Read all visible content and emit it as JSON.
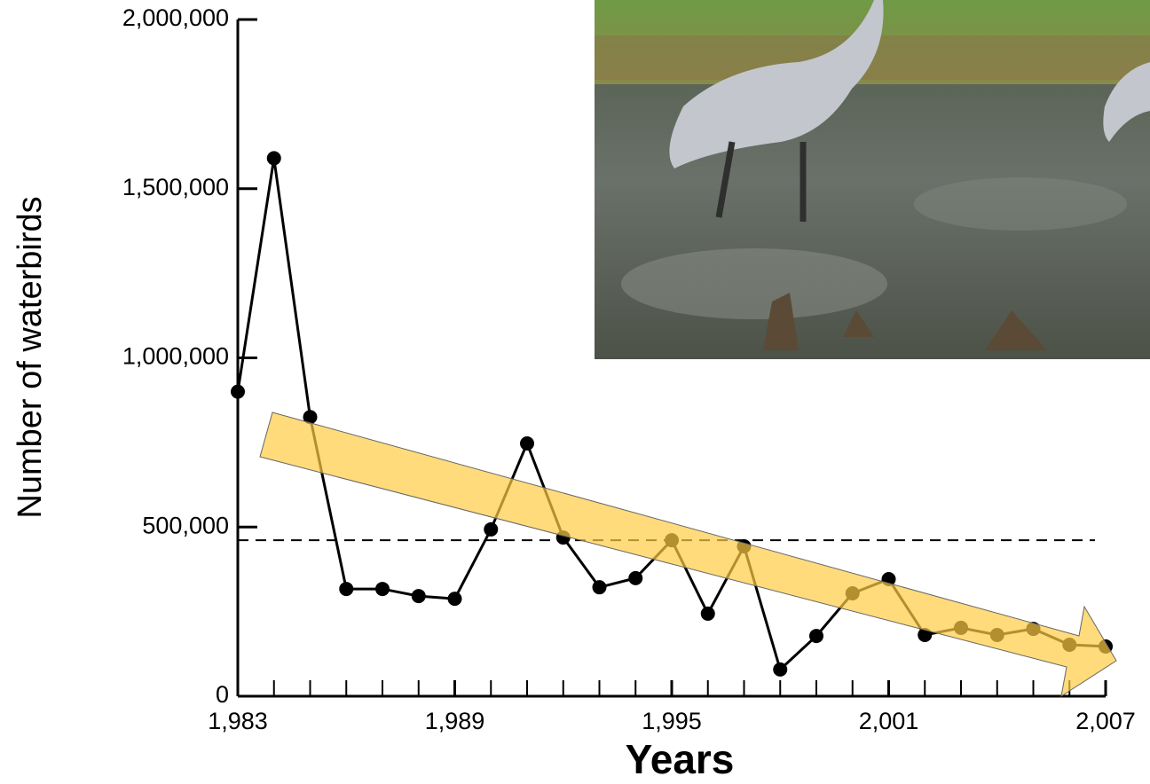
{
  "chart_data": {
    "type": "line",
    "x_label": "Years",
    "y_label": "Number of waterbirds",
    "x": [
      1983,
      1984,
      1985,
      1986,
      1987,
      1988,
      1989,
      1990,
      1991,
      1992,
      1993,
      1994,
      1995,
      1996,
      1997,
      1998,
      1999,
      2000,
      2001,
      2002,
      2003,
      2004,
      2005,
      2006,
      2007
    ],
    "series": [
      {
        "color": "#000000",
        "values": [
          900000,
          1590000,
          825000,
          317000,
          317000,
          296000,
          288000,
          493000,
          747000,
          469000,
          322000,
          349000,
          461000,
          244000,
          443000,
          79000,
          178000,
          304000,
          346000,
          181000,
          202000,
          181000,
          199000,
          152000,
          147000
        ]
      }
    ],
    "xlim": [
      1983,
      2007
    ],
    "xticks": [
      {
        "value": 1983,
        "label": "1,983"
      },
      {
        "value": 1989,
        "label": "1,989"
      },
      {
        "value": 1995,
        "label": "1,995"
      },
      {
        "value": 2001,
        "label": "2,001"
      },
      {
        "value": 2007,
        "label": "2,007"
      }
    ],
    "xminorticks": [
      1984,
      1985,
      1986,
      1987,
      1988,
      1990,
      1991,
      1992,
      1993,
      1994,
      1996,
      1997,
      1998,
      1999,
      2000,
      2002,
      2003,
      2004,
      2005,
      2006
    ],
    "ylim": [
      0,
      2000000
    ],
    "yticks": [
      0,
      {
        "value": 500000,
        "label": "500,000"
      },
      {
        "value": 1000000,
        "label": "1,000,000"
      },
      {
        "value": 1500000,
        "label": "1,500,000"
      },
      {
        "value": 2000000,
        "label": "2,000,000"
      }
    ],
    "hline": 461000
  }
}
